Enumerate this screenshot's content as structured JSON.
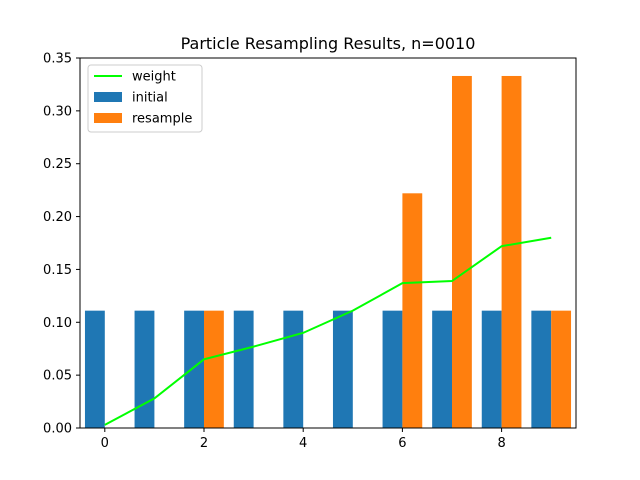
{
  "chart_data": {
    "type": "bar",
    "title": "Particle Resampling Results, n=0010",
    "xlabel": "",
    "ylabel": "",
    "xlim": [
      -0.5,
      9.5
    ],
    "ylim": [
      0,
      0.35
    ],
    "xticks": [
      0,
      2,
      4,
      6,
      8
    ],
    "yticks": [
      0.0,
      0.05,
      0.1,
      0.15,
      0.2,
      0.25,
      0.3,
      0.35
    ],
    "ytick_labels": [
      "0.00",
      "0.05",
      "0.10",
      "0.15",
      "0.20",
      "0.25",
      "0.30",
      "0.35"
    ],
    "grid": false,
    "legend": "top-left",
    "x": [
      0,
      1,
      2,
      3,
      4,
      5,
      6,
      7,
      8,
      9
    ],
    "series": [
      {
        "name": "initial",
        "type": "bar",
        "color": "#1f77b4",
        "offset": "left",
        "values": [
          0.111,
          0.111,
          0.111,
          0.111,
          0.111,
          0.111,
          0.111,
          0.111,
          0.111,
          0.111
        ]
      },
      {
        "name": "resample",
        "type": "bar",
        "color": "#ff7f0e",
        "offset": "right",
        "values": [
          0,
          0,
          0.111,
          0,
          0,
          0,
          0.222,
          0.333,
          0.333,
          0.111
        ]
      },
      {
        "name": "weight",
        "type": "line",
        "color": "#00ff00",
        "values": [
          0.003,
          0.028,
          0.065,
          0.077,
          0.09,
          0.111,
          0.137,
          0.139,
          0.172,
          0.18
        ]
      }
    ]
  }
}
